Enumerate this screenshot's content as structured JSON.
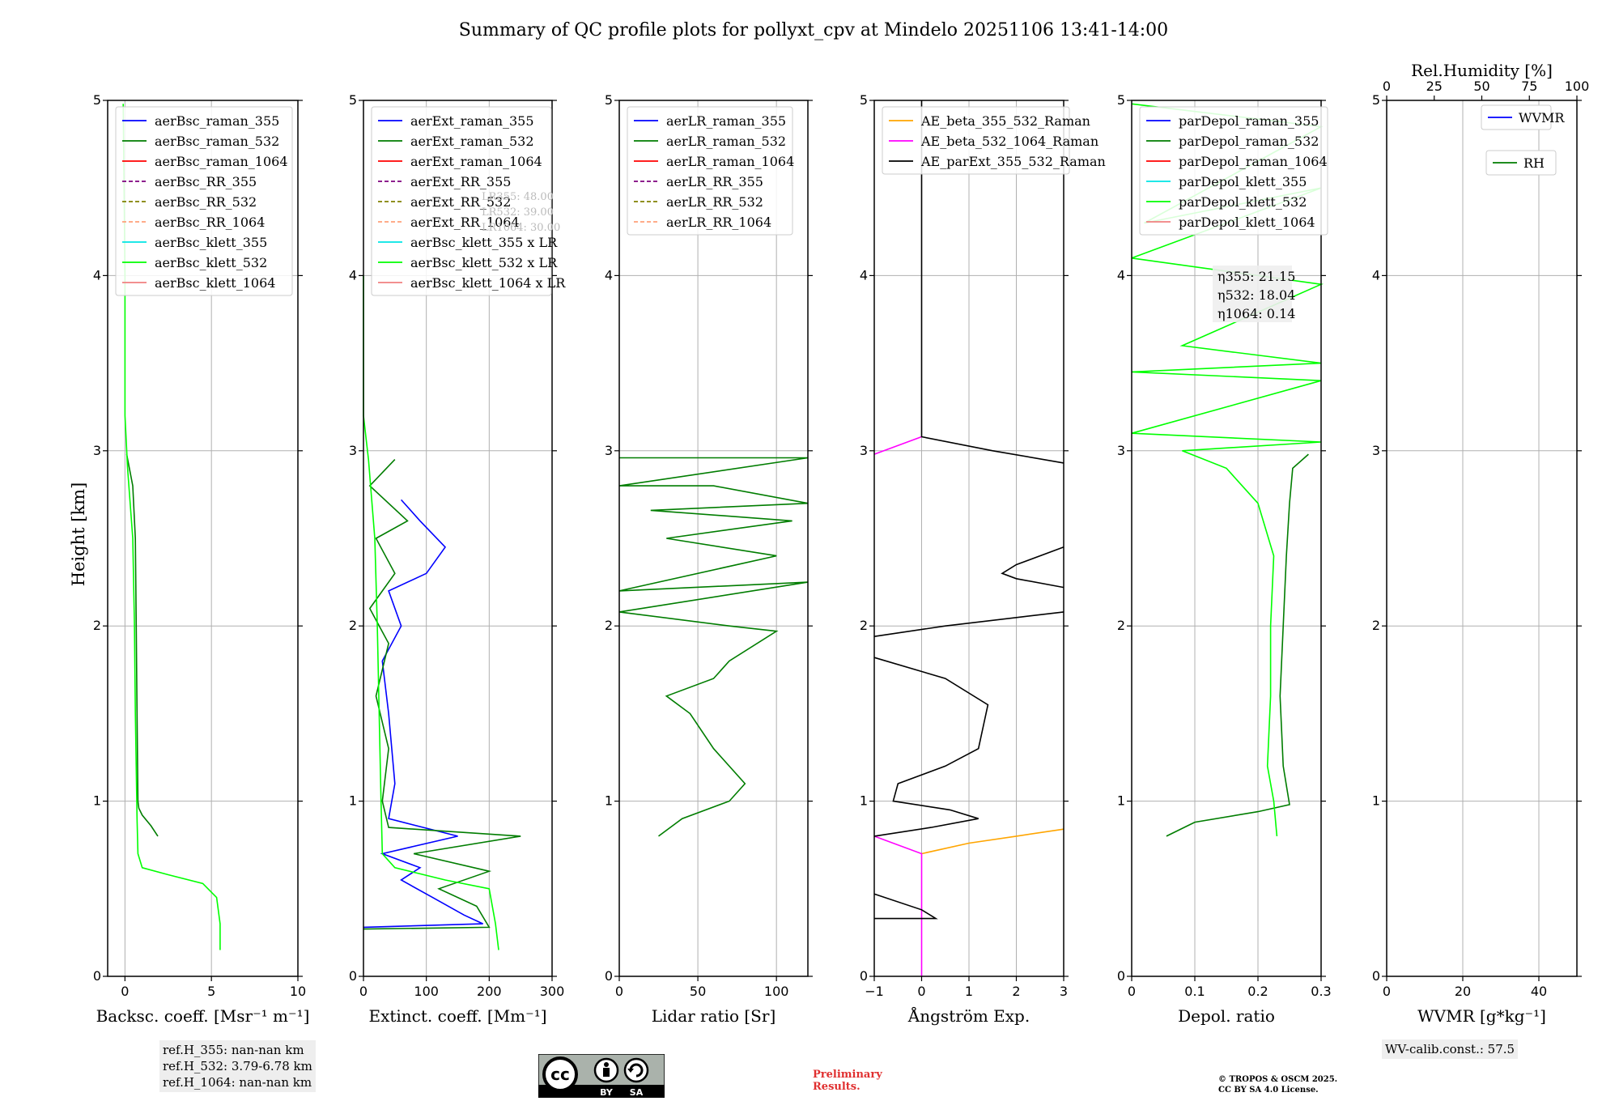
{
  "title": "Summary of QC profile plots for pollyxt_cpv at Mindelo 20251106 13:41-14:00",
  "ylabel": "Height [km]",
  "colors": {
    "blue": "#0000ff",
    "green": "#007d00",
    "red": "#ff0000",
    "purple": "#7f007f",
    "olive": "#808000",
    "salmon": "#ffa07a",
    "cyan": "#00e5e5",
    "lime": "#00ff00",
    "lightcoral": "#f08080",
    "orange": "#ffa500",
    "magenta": "#ff00ff",
    "black": "#000000"
  },
  "chart_data": [
    {
      "type": "line",
      "id": "bsc",
      "xlabel": "Backsc. coeff. [Msr⁻¹ m⁻¹]",
      "xlim": [
        -1,
        10
      ],
      "ylim": [
        0,
        5
      ],
      "xticks": [
        0,
        5,
        10
      ],
      "yticks": [
        0,
        1,
        2,
        3,
        4,
        5
      ],
      "legend": [
        "aerBsc_raman_355",
        "aerBsc_raman_532",
        "aerBsc_raman_1064",
        "aerBsc_RR_355",
        "aerBsc_RR_532",
        "aerBsc_RR_1064",
        "aerBsc_klett_355",
        "aerBsc_klett_532",
        "aerBsc_klett_1064"
      ],
      "legend_colors": [
        "blue",
        "green",
        "red",
        "purple",
        "olive",
        "salmon",
        "cyan",
        "lime",
        "lightcoral"
      ],
      "legend_dashed": [
        false,
        false,
        false,
        true,
        true,
        true,
        false,
        false,
        false
      ],
      "series": [
        {
          "name": "aerBsc_raman_532",
          "color": "green",
          "points": [
            [
              1.9,
              0.8
            ],
            [
              1.5,
              0.86
            ],
            [
              1.0,
              0.92
            ],
            [
              0.8,
              0.96
            ],
            [
              0.75,
              1.0
            ],
            [
              0.7,
              1.5
            ],
            [
              0.65,
              2.0
            ],
            [
              0.6,
              2.5
            ],
            [
              0.45,
              2.8
            ],
            [
              0.1,
              2.98
            ]
          ]
        },
        {
          "name": "aerBsc_klett_532",
          "color": "lime",
          "points": [
            [
              5.5,
              0.15
            ],
            [
              5.5,
              0.3
            ],
            [
              5.3,
              0.45
            ],
            [
              4.5,
              0.53
            ],
            [
              2.5,
              0.58
            ],
            [
              1.0,
              0.62
            ],
            [
              0.75,
              0.7
            ],
            [
              0.7,
              0.9
            ],
            [
              0.6,
              1.5
            ],
            [
              0.55,
              2.0
            ],
            [
              0.45,
              2.5
            ],
            [
              0.15,
              2.9
            ],
            [
              0.0,
              3.2
            ],
            [
              0.0,
              4.0
            ],
            [
              -0.1,
              4.98
            ]
          ]
        }
      ]
    },
    {
      "type": "line",
      "id": "ext",
      "xlabel": "Extinct. coeff. [Mm⁻¹]",
      "xlim": [
        0,
        300
      ],
      "ylim": [
        0,
        5
      ],
      "xticks": [
        0,
        100,
        200,
        300
      ],
      "yticks": [
        0,
        1,
        2,
        3,
        4,
        5
      ],
      "legend": [
        "aerExt_raman_355",
        "aerExt_raman_532",
        "aerExt_raman_1064",
        "aerExt_RR_355",
        "aerExt_RR_532",
        "aerExt_RR_1064",
        "aerBsc_klett_355 x LR",
        "aerBsc_klett_532 x LR",
        "aerBsc_klett_1064 x LR"
      ],
      "legend_colors": [
        "blue",
        "green",
        "red",
        "purple",
        "olive",
        "salmon",
        "cyan",
        "lime",
        "lightcoral"
      ],
      "legend_dashed": [
        false,
        false,
        false,
        true,
        true,
        true,
        false,
        false,
        false
      ],
      "lr_notes": [
        "LR355: 48.00",
        "LR532: 39.00",
        "LR1064: 30.00"
      ],
      "series": [
        {
          "name": "aerExt_raman_355",
          "color": "blue",
          "points": [
            [
              0,
              0.28
            ],
            [
              190,
              0.3
            ],
            [
              160,
              0.35
            ],
            [
              110,
              0.45
            ],
            [
              60,
              0.55
            ],
            [
              90,
              0.62
            ],
            [
              30,
              0.7
            ],
            [
              150,
              0.8
            ],
            [
              40,
              0.9
            ],
            [
              50,
              1.1
            ],
            [
              40,
              1.5
            ],
            [
              30,
              1.8
            ],
            [
              60,
              2.0
            ],
            [
              40,
              2.2
            ],
            [
              100,
              2.3
            ],
            [
              130,
              2.45
            ],
            [
              90,
              2.6
            ],
            [
              60,
              2.72
            ]
          ]
        },
        {
          "name": "aerExt_raman_532",
          "color": "green",
          "points": [
            [
              0,
              0.27
            ],
            [
              200,
              0.28
            ],
            [
              180,
              0.4
            ],
            [
              120,
              0.5
            ],
            [
              200,
              0.6
            ],
            [
              80,
              0.7
            ],
            [
              250,
              0.8
            ],
            [
              40,
              0.85
            ],
            [
              30,
              1.0
            ],
            [
              40,
              1.3
            ],
            [
              20,
              1.6
            ],
            [
              40,
              1.9
            ],
            [
              10,
              2.1
            ],
            [
              50,
              2.3
            ],
            [
              20,
              2.5
            ],
            [
              70,
              2.6
            ],
            [
              10,
              2.8
            ],
            [
              50,
              2.95
            ]
          ]
        },
        {
          "name": "aerBsc_klett_532 x LR",
          "color": "lime",
          "points": [
            [
              215,
              0.15
            ],
            [
              210,
              0.3
            ],
            [
              200,
              0.5
            ],
            [
              130,
              0.55
            ],
            [
              50,
              0.62
            ],
            [
              30,
              0.7
            ],
            [
              28,
              1.0
            ],
            [
              25,
              1.5
            ],
            [
              22,
              2.0
            ],
            [
              18,
              2.5
            ],
            [
              8,
              2.95
            ],
            [
              0,
              3.2
            ],
            [
              0,
              4.0
            ]
          ]
        }
      ]
    },
    {
      "type": "line",
      "id": "lr",
      "xlabel": "Lidar ratio [Sr]",
      "xlim": [
        0,
        120
      ],
      "ylim": [
        0,
        5
      ],
      "xticks": [
        0,
        50,
        100
      ],
      "yticks": [
        0,
        1,
        2,
        3,
        4,
        5
      ],
      "legend": [
        "aerLR_raman_355",
        "aerLR_raman_532",
        "aerLR_raman_1064",
        "aerLR_RR_355",
        "aerLR_RR_532",
        "aerLR_RR_1064"
      ],
      "legend_colors": [
        "blue",
        "green",
        "red",
        "purple",
        "olive",
        "salmon"
      ],
      "legend_dashed": [
        false,
        false,
        false,
        true,
        true,
        true
      ],
      "series": [
        {
          "name": "aerLR_raman_532",
          "color": "green",
          "points": [
            [
              25,
              0.8
            ],
            [
              40,
              0.9
            ],
            [
              70,
              1.0
            ],
            [
              80,
              1.1
            ],
            [
              60,
              1.3
            ],
            [
              45,
              1.5
            ],
            [
              30,
              1.6
            ],
            [
              60,
              1.7
            ],
            [
              70,
              1.8
            ],
            [
              100,
              1.97
            ],
            [
              70,
              2.0
            ],
            [
              0,
              2.08
            ],
            [
              120,
              2.25
            ],
            [
              0,
              2.2
            ],
            [
              100,
              2.4
            ],
            [
              30,
              2.5
            ],
            [
              110,
              2.6
            ],
            [
              20,
              2.66
            ],
            [
              120,
              2.7
            ],
            [
              60,
              2.8
            ],
            [
              0,
              2.8
            ],
            [
              120,
              2.96
            ],
            [
              0,
              2.96
            ]
          ]
        }
      ]
    },
    {
      "type": "line",
      "id": "ae",
      "xlabel": "Ångström Exp.",
      "xlim": [
        -1,
        3
      ],
      "ylim": [
        0,
        5
      ],
      "xticks": [
        -1,
        0,
        1,
        2,
        3
      ],
      "yticks": [
        0,
        1,
        2,
        3,
        4,
        5
      ],
      "legend": [
        "AE_beta_355_532_Raman",
        "AE_beta_532_1064_Raman",
        "AE_parExt_355_532_Raman"
      ],
      "legend_colors": [
        "orange",
        "magenta",
        "black"
      ],
      "legend_dashed": [
        false,
        false,
        false
      ],
      "series": [
        {
          "name": "AE_beta_355_532_Raman",
          "color": "orange",
          "points": [
            [
              0,
              0.7
            ],
            [
              1,
              0.76
            ],
            [
              2,
              0.8
            ],
            [
              3,
              0.84
            ]
          ]
        },
        {
          "name": "AE_beta_532_1064_Raman",
          "color": "magenta",
          "points": [
            [
              0,
              0.0
            ],
            [
              0,
              0.7
            ],
            [
              -1,
              0.8
            ]
          ]
        },
        {
          "name": "AE_beta_532_1064_Raman upper",
          "color": "magenta",
          "points": [
            [
              -1,
              2.98
            ],
            [
              0,
              3.08
            ]
          ]
        },
        {
          "name": "AE_parExt_355_532_Raman",
          "color": "black",
          "points": [
            [
              -1,
              0.8
            ],
            [
              0.2,
              0.85
            ],
            [
              1.2,
              0.9
            ],
            [
              0.6,
              0.95
            ],
            [
              -0.6,
              1.0
            ],
            [
              -0.5,
              1.1
            ],
            [
              0.5,
              1.2
            ],
            [
              1.2,
              1.3
            ],
            [
              1.4,
              1.55
            ],
            [
              0.5,
              1.7
            ],
            [
              -1,
              1.82
            ]
          ]
        },
        {
          "name": "AE_parExt_355_532_Raman upper",
          "color": "black",
          "points": [
            [
              -1,
              1.94
            ],
            [
              0.5,
              2.0
            ],
            [
              3,
              2.08
            ]
          ]
        },
        {
          "name": "AE_parExt_355_532_Raman mid",
          "color": "black",
          "points": [
            [
              3,
              2.22
            ],
            [
              2.0,
              2.27
            ],
            [
              1.7,
              2.3
            ],
            [
              2.0,
              2.35
            ],
            [
              3,
              2.45
            ]
          ]
        },
        {
          "name": "AE_parExt_355_532_Raman top",
          "color": "black",
          "points": [
            [
              3,
              2.93
            ],
            [
              1.5,
              3.0
            ],
            [
              0,
              3.08
            ],
            [
              0,
              5.0
            ]
          ]
        },
        {
          "name": "AE_parExt_355_532_Raman low",
          "color": "black",
          "points": [
            [
              -1,
              0.33
            ],
            [
              0.3,
              0.33
            ],
            [
              0,
              0.38
            ],
            [
              -1,
              0.47
            ]
          ]
        }
      ]
    },
    {
      "type": "line",
      "id": "depol",
      "xlabel": "Depol. ratio",
      "xlim": [
        0.0,
        0.3
      ],
      "ylim": [
        0,
        5
      ],
      "xticks": [
        0.0,
        0.1,
        0.2,
        0.3
      ],
      "yticks": [
        0,
        1,
        2,
        3,
        4,
        5
      ],
      "legend": [
        "parDepol_raman_355",
        "parDepol_raman_532",
        "parDepol_raman_1064",
        "parDepol_klett_355",
        "parDepol_klett_532",
        "parDepol_klett_1064"
      ],
      "legend_colors": [
        "blue",
        "green",
        "red",
        "cyan",
        "lime",
        "lightcoral"
      ],
      "legend_dashed": [
        false,
        false,
        false,
        false,
        false,
        false
      ],
      "eta": [
        "η355: 21.15",
        "η532: 18.04",
        "η1064: 0.14"
      ],
      "series": [
        {
          "name": "parDepol_raman_532",
          "color": "green",
          "points": [
            [
              0.055,
              0.8
            ],
            [
              0.1,
              0.88
            ],
            [
              0.2,
              0.94
            ],
            [
              0.25,
              0.98
            ],
            [
              0.24,
              1.2
            ],
            [
              0.235,
              1.6
            ],
            [
              0.24,
              2.0
            ],
            [
              0.245,
              2.4
            ],
            [
              0.25,
              2.7
            ],
            [
              0.255,
              2.9
            ],
            [
              0.28,
              2.98
            ]
          ]
        },
        {
          "name": "parDepol_klett_532",
          "color": "lime",
          "points": [
            [
              0.23,
              0.8
            ],
            [
              0.225,
              1.0
            ],
            [
              0.215,
              1.2
            ],
            [
              0.22,
              1.6
            ],
            [
              0.22,
              2.0
            ],
            [
              0.225,
              2.4
            ],
            [
              0.2,
              2.7
            ],
            [
              0.15,
              2.9
            ],
            [
              0.08,
              3.0
            ],
            [
              0.3,
              3.05
            ],
            [
              0.0,
              3.1
            ],
            [
              0.3,
              3.4
            ],
            [
              0.0,
              3.45
            ],
            [
              0.3,
              3.5
            ],
            [
              0.08,
              3.6
            ],
            [
              0.3,
              3.95
            ],
            [
              0.0,
              4.1
            ],
            [
              0.3,
              4.5
            ],
            [
              0.02,
              4.3
            ],
            [
              0.3,
              4.85
            ],
            [
              0.0,
              4.98
            ]
          ]
        }
      ]
    },
    {
      "type": "line",
      "id": "wv",
      "xlabel": "WVMR [g*kg⁻¹]",
      "top_xlabel": "Rel.Humidity [%]",
      "xlim": [
        0,
        50
      ],
      "ylim": [
        0,
        5
      ],
      "xticks": [
        0,
        20,
        40
      ],
      "top_xticks": [
        0,
        25,
        50,
        75,
        100
      ],
      "yticks": [
        0,
        1,
        2,
        3,
        4,
        5
      ],
      "legend": [
        "WVMR",
        "RH"
      ],
      "legend_colors": [
        "blue",
        "green"
      ],
      "legend_dashed": [
        false,
        false
      ],
      "series": []
    }
  ],
  "ref_heights": [
    "ref.H_355: nan-nan km",
    "ref.H_532: 3.79-6.78 km",
    "ref.H_1064: nan-nan km"
  ],
  "wv_calib": "WV-calib.const.: 57.5",
  "license_badge": {
    "cc": "cc",
    "by": "BY",
    "sa": "SA"
  },
  "preliminary": [
    "Preliminary",
    "Results."
  ],
  "copyright": [
    "© TROPOS & OSCM 2025.",
    "CC BY SA 4.0 License."
  ]
}
